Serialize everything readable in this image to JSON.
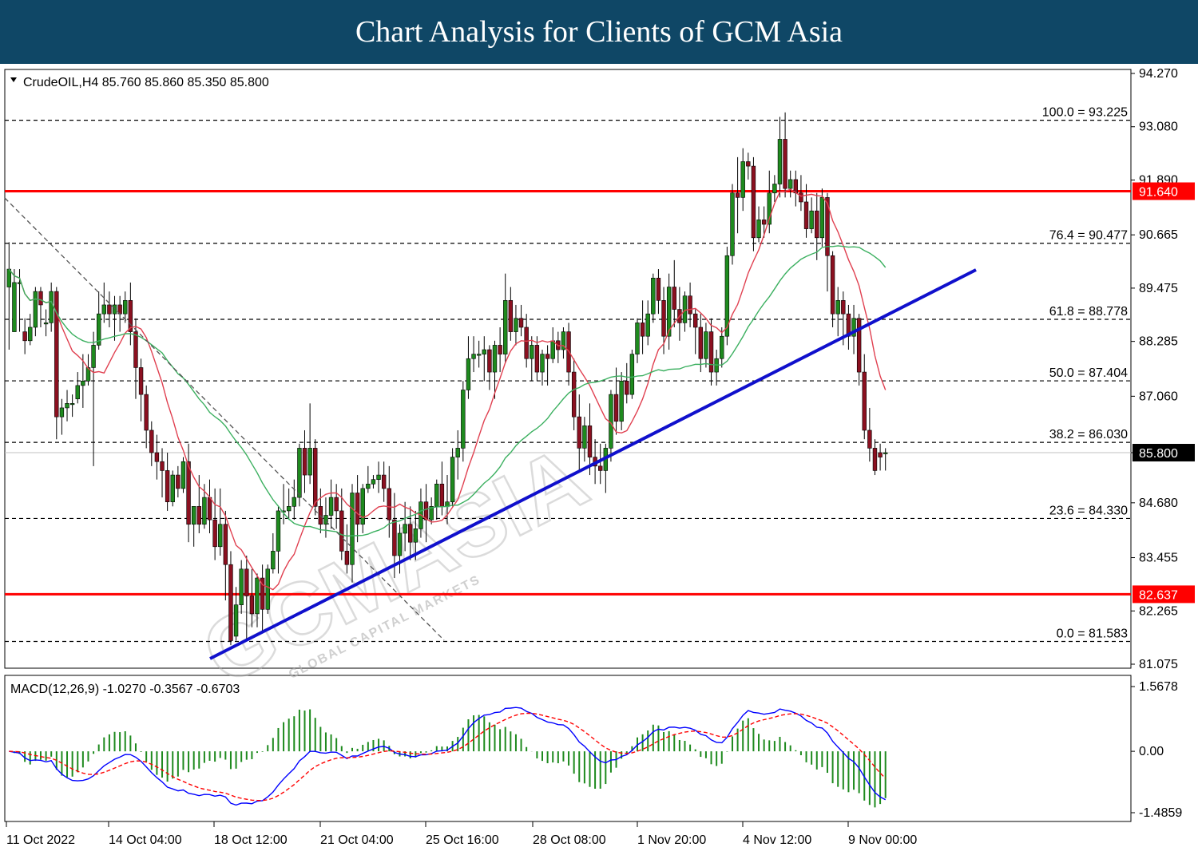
{
  "header": {
    "title": "Chart Analysis for Clients of GCM Asia"
  },
  "watermark": {
    "text": "GCMASIA",
    "sub": "GLOBAL CAPITAL MARKETS"
  },
  "colors": {
    "header_bg": "#0f4766",
    "bull": "#1e8a1e",
    "bear": "#8b1020",
    "ma_fast": "#e04050",
    "ma_slow": "#3cb060",
    "trendline": "#1010cc",
    "sr_line": "#ff0000",
    "macd_line": "#0000ff",
    "macd_signal": "#ff0000",
    "histogram": "#1e8a1e"
  },
  "chart_data": {
    "type": "candlestick",
    "symbol_header": "CrudeOIL,H4  85.760 85.860 85.350 85.800",
    "ylim": [
      81.075,
      94.27
    ],
    "y_ticks": [
      "94.270",
      "93.080",
      "91.890",
      "90.665",
      "89.475",
      "88.285",
      "87.060",
      "85.800",
      "84.680",
      "83.455",
      "82.265",
      "81.075"
    ],
    "x_labels": [
      "11 Oct 2022",
      "14 Oct 04:00",
      "18 Oct 12:00",
      "21 Oct 04:00",
      "25 Oct 16:00",
      "28 Oct 08:00",
      "1 Nov 20:00",
      "4 Nov 12:00",
      "9 Nov 00:00"
    ],
    "current_price": {
      "value": 85.8,
      "label": "85.800"
    },
    "support_resistance": [
      {
        "value": 91.64,
        "label": "91.640"
      },
      {
        "value": 82.637,
        "label": "82.637"
      }
    ],
    "fibonacci": [
      {
        "level": "100.0",
        "value": 93.225,
        "label": "100.0 = 93.225"
      },
      {
        "level": "76.4",
        "value": 90.477,
        "label": "76.4 = 90.477"
      },
      {
        "level": "61.8",
        "value": 88.778,
        "label": "61.8 = 88.778"
      },
      {
        "level": "50.0",
        "value": 87.404,
        "label": "50.0 = 87.404"
      },
      {
        "level": "38.2",
        "value": 86.03,
        "label": "38.2 = 86.030"
      },
      {
        "level": "23.6",
        "value": 84.33,
        "label": "23.6 = 84.330"
      },
      {
        "level": "0.0",
        "value": 81.583,
        "label": "0.0 = 81.583"
      }
    ],
    "candles": [
      [
        89.5,
        90.5,
        89.9,
        88.1
      ],
      [
        88.5,
        89.9,
        89.6,
        88.6
      ],
      [
        89.6,
        89.9,
        89.6,
        88.5
      ],
      [
        88.5,
        88.8,
        88.3,
        88.0
      ],
      [
        88.3,
        88.9,
        88.6,
        88.2
      ],
      [
        88.6,
        89.5,
        89.4,
        88.4
      ],
      [
        89.4,
        89.5,
        89.1,
        88.6
      ],
      [
        88.7,
        89.0,
        88.7,
        88.4
      ],
      [
        88.7,
        89.6,
        89.4,
        88.5
      ],
      [
        89.4,
        89.5,
        86.6,
        86.1
      ],
      [
        86.6,
        87.0,
        86.8,
        86.2
      ],
      [
        86.8,
        87.2,
        86.9,
        86.5
      ],
      [
        86.9,
        87.1,
        86.9,
        86.6
      ],
      [
        87.0,
        87.6,
        87.3,
        86.9
      ],
      [
        87.3,
        88.0,
        87.4,
        86.8
      ],
      [
        87.4,
        88.0,
        87.7,
        87.3
      ],
      [
        87.7,
        88.5,
        88.2,
        85.5
      ],
      [
        88.2,
        89.4,
        88.9,
        88.1
      ],
      [
        88.9,
        89.6,
        89.1,
        88.7
      ],
      [
        89.1,
        89.4,
        88.9,
        88.6
      ],
      [
        88.9,
        89.3,
        89.1,
        88.3
      ],
      [
        89.1,
        89.3,
        88.9,
        88.5
      ],
      [
        88.9,
        89.4,
        89.2,
        88.7
      ],
      [
        89.2,
        89.6,
        88.5,
        88.2
      ],
      [
        88.5,
        88.8,
        87.7,
        87.0
      ],
      [
        87.7,
        87.9,
        87.1,
        86.5
      ],
      [
        87.1,
        87.3,
        86.3,
        85.9
      ],
      [
        86.3,
        86.5,
        85.8,
        85.5
      ],
      [
        85.8,
        86.2,
        85.6,
        85.2
      ],
      [
        85.6,
        85.9,
        85.4,
        84.8
      ],
      [
        85.4,
        85.8,
        84.7,
        84.5
      ],
      [
        84.7,
        85.4,
        85.3,
        84.6
      ],
      [
        85.3,
        85.5,
        85.0,
        84.8
      ],
      [
        85.0,
        85.7,
        85.6,
        84.9
      ],
      [
        85.6,
        86.0,
        84.2,
        83.8
      ],
      [
        84.2,
        84.6,
        84.6,
        83.7
      ],
      [
        84.6,
        85.3,
        84.2,
        84.0
      ],
      [
        84.2,
        85.1,
        84.8,
        84.1
      ],
      [
        84.8,
        85.2,
        84.3,
        84.0
      ],
      [
        84.3,
        85.0,
        83.7,
        83.4
      ],
      [
        83.7,
        85.0,
        84.2,
        83.5
      ],
      [
        84.2,
        84.5,
        83.3,
        82.5
      ],
      [
        83.3,
        83.6,
        81.6,
        81.5
      ],
      [
        81.7,
        82.8,
        82.4,
        81.6
      ],
      [
        82.4,
        83.4,
        83.2,
        82.2
      ],
      [
        83.2,
        83.5,
        82.6,
        81.6
      ],
      [
        82.6,
        83.2,
        82.2,
        81.9
      ],
      [
        82.2,
        83.1,
        83.0,
        81.9
      ],
      [
        83.0,
        83.3,
        82.3,
        81.8
      ],
      [
        82.3,
        83.3,
        83.2,
        82.2
      ],
      [
        83.2,
        84.0,
        83.6,
        83.1
      ],
      [
        83.6,
        84.6,
        84.5,
        83.1
      ],
      [
        84.5,
        85.1,
        84.5,
        84.2
      ],
      [
        84.5,
        85.0,
        84.6,
        84.3
      ],
      [
        84.6,
        85.2,
        84.8,
        84.3
      ],
      [
        84.8,
        86.0,
        85.9,
        84.6
      ],
      [
        85.9,
        86.3,
        85.3,
        84.9
      ],
      [
        85.3,
        86.9,
        85.9,
        85.1
      ],
      [
        85.9,
        86.1,
        84.6,
        84.4
      ],
      [
        84.6,
        85.0,
        84.2,
        84.0
      ],
      [
        84.2,
        84.8,
        84.4,
        83.9
      ],
      [
        84.4,
        85.2,
        84.8,
        84.1
      ],
      [
        84.8,
        85.1,
        84.5,
        84.1
      ],
      [
        84.5,
        85.0,
        83.6,
        83.4
      ],
      [
        83.6,
        84.2,
        83.3,
        83.1
      ],
      [
        83.3,
        85.1,
        84.9,
        82.9
      ],
      [
        84.9,
        85.3,
        84.2,
        83.8
      ],
      [
        84.2,
        85.1,
        85.0,
        84.0
      ],
      [
        85.0,
        85.5,
        85.1,
        84.9
      ],
      [
        85.1,
        85.3,
        85.2,
        85.0
      ],
      [
        85.2,
        85.6,
        85.3,
        84.9
      ],
      [
        85.3,
        85.6,
        85.0,
        84.7
      ],
      [
        85.0,
        85.5,
        84.3,
        83.9
      ],
      [
        84.3,
        84.9,
        83.5,
        83.0
      ],
      [
        83.5,
        84.2,
        84.0,
        83.1
      ],
      [
        84.0,
        84.7,
        84.2,
        83.6
      ],
      [
        84.2,
        84.6,
        83.8,
        83.4
      ],
      [
        83.8,
        84.5,
        84.1,
        83.4
      ],
      [
        84.1,
        85.0,
        84.7,
        83.9
      ],
      [
        84.7,
        85.1,
        84.3,
        83.8
      ],
      [
        84.3,
        84.8,
        84.6,
        84.2
      ],
      [
        84.6,
        85.2,
        85.1,
        84.3
      ],
      [
        85.1,
        85.6,
        84.6,
        84.4
      ],
      [
        84.6,
        85.3,
        84.7,
        84.2
      ],
      [
        84.7,
        85.9,
        85.7,
        84.6
      ],
      [
        85.7,
        86.3,
        85.9,
        85.2
      ],
      [
        85.9,
        87.4,
        87.2,
        85.6
      ],
      [
        87.2,
        88.4,
        87.9,
        87.0
      ],
      [
        87.9,
        88.4,
        88.0,
        87.6
      ],
      [
        88.0,
        88.3,
        88.0,
        87.7
      ],
      [
        88.0,
        88.4,
        88.1,
        87.4
      ],
      [
        88.1,
        88.2,
        87.6,
        87.2
      ],
      [
        87.6,
        88.3,
        88.2,
        87.0
      ],
      [
        88.2,
        88.6,
        88.0,
        87.6
      ],
      [
        88.0,
        89.8,
        89.2,
        87.8
      ],
      [
        89.2,
        89.5,
        88.5,
        88.3
      ],
      [
        88.5,
        89.1,
        88.8,
        88.2
      ],
      [
        88.8,
        89.1,
        88.6,
        88.4
      ],
      [
        88.6,
        88.9,
        87.9,
        87.7
      ],
      [
        87.9,
        88.4,
        88.2,
        87.4
      ],
      [
        88.2,
        88.4,
        87.6,
        87.4
      ],
      [
        87.6,
        88.1,
        88.0,
        87.3
      ],
      [
        88.0,
        88.2,
        87.9,
        87.3
      ],
      [
        87.9,
        88.6,
        88.3,
        87.8
      ],
      [
        88.3,
        88.5,
        88.1,
        87.8
      ],
      [
        88.1,
        88.6,
        88.5,
        87.9
      ],
      [
        88.5,
        88.7,
        87.6,
        87.3
      ],
      [
        87.6,
        87.9,
        86.6,
        86.3
      ],
      [
        86.6,
        87.1,
        85.9,
        85.4
      ],
      [
        85.9,
        86.6,
        86.4,
        85.6
      ],
      [
        86.4,
        86.9,
        85.7,
        85.3
      ],
      [
        85.7,
        86.1,
        85.5,
        85.1
      ],
      [
        85.5,
        86.0,
        85.4,
        85.1
      ],
      [
        85.4,
        86.0,
        85.9,
        84.9
      ],
      [
        85.9,
        87.2,
        87.1,
        85.6
      ],
      [
        87.1,
        87.7,
        86.5,
        86.2
      ],
      [
        86.5,
        87.6,
        87.4,
        86.3
      ],
      [
        87.4,
        87.8,
        87.1,
        86.9
      ],
      [
        87.1,
        88.1,
        88.0,
        87.0
      ],
      [
        88.0,
        88.8,
        88.7,
        87.8
      ],
      [
        88.7,
        89.2,
        88.4,
        88.0
      ],
      [
        88.4,
        89.2,
        88.9,
        88.2
      ],
      [
        88.9,
        89.8,
        89.7,
        88.7
      ],
      [
        89.7,
        89.9,
        89.2,
        88.9
      ],
      [
        89.2,
        89.5,
        88.4,
        88.0
      ],
      [
        88.4,
        89.8,
        89.5,
        88.1
      ],
      [
        89.5,
        90.1,
        89.0,
        88.6
      ],
      [
        89.0,
        89.5,
        88.7,
        88.3
      ],
      [
        88.7,
        89.4,
        89.3,
        88.5
      ],
      [
        89.3,
        89.6,
        88.9,
        88.6
      ],
      [
        88.9,
        89.0,
        88.6,
        88.0
      ],
      [
        88.6,
        88.9,
        87.9,
        87.6
      ],
      [
        87.9,
        88.7,
        88.5,
        87.7
      ],
      [
        88.5,
        88.8,
        87.6,
        87.3
      ],
      [
        87.6,
        88.1,
        87.9,
        87.3
      ],
      [
        87.9,
        88.6,
        88.4,
        87.7
      ],
      [
        88.4,
        90.4,
        90.2,
        88.2
      ],
      [
        90.2,
        91.8,
        91.6,
        90.0
      ],
      [
        91.6,
        92.4,
        91.5,
        90.7
      ],
      [
        91.5,
        92.6,
        92.3,
        91.2
      ],
      [
        92.3,
        92.5,
        92.2,
        91.9
      ],
      [
        92.2,
        92.4,
        90.6,
        90.3
      ],
      [
        90.6,
        91.3,
        91.0,
        90.5
      ],
      [
        91.0,
        91.3,
        90.9,
        90.6
      ],
      [
        90.9,
        92.1,
        91.6,
        90.7
      ],
      [
        91.6,
        92.0,
        91.8,
        91.4
      ],
      [
        91.8,
        93.3,
        92.8,
        91.5
      ],
      [
        92.8,
        93.4,
        91.7,
        91.5
      ],
      [
        91.7,
        92.1,
        91.9,
        91.5
      ],
      [
        91.9,
        92.1,
        91.6,
        91.3
      ],
      [
        91.6,
        92.0,
        91.4,
        91.2
      ],
      [
        91.4,
        91.8,
        90.8,
        90.6
      ],
      [
        90.8,
        91.5,
        91.2,
        90.7
      ],
      [
        91.2,
        91.6,
        90.6,
        90.1
      ],
      [
        90.6,
        91.7,
        91.5,
        90.4
      ],
      [
        91.5,
        91.6,
        90.2,
        89.4
      ],
      [
        90.2,
        90.3,
        88.9,
        88.6
      ],
      [
        88.9,
        89.5,
        89.2,
        88.4
      ],
      [
        89.2,
        89.4,
        88.9,
        88.2
      ],
      [
        88.9,
        89.1,
        88.4,
        88.1
      ],
      [
        88.4,
        89.1,
        88.8,
        88.0
      ],
      [
        88.8,
        88.9,
        87.6,
        87.3
      ],
      [
        87.6,
        88.0,
        86.3,
        86.1
      ],
      [
        86.3,
        86.8,
        85.9,
        85.6
      ],
      [
        85.9,
        86.1,
        85.4,
        85.3
      ],
      [
        85.8,
        86.0,
        85.7,
        85.4
      ],
      [
        85.8,
        85.9,
        85.8,
        85.4
      ]
    ],
    "ma_fast": [],
    "ma_slow": [],
    "macd": {
      "label": "MACD(12,26,9) -1.0270 -0.3567 -0.6703",
      "ylim": [
        -1.4859,
        1.5678
      ],
      "y_ticks": [
        "1.5678",
        "0.00",
        "-1.4859"
      ]
    }
  }
}
